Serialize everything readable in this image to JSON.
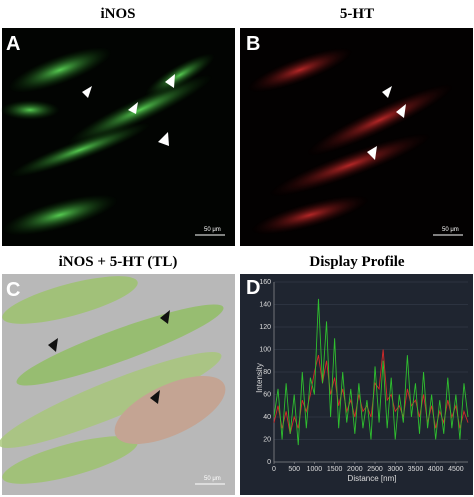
{
  "panels": [
    {
      "title": "iNOS",
      "label": "A",
      "scale_bar": "50 μm"
    },
    {
      "title": "5-HT",
      "label": "B",
      "scale_bar": "50 μm"
    },
    {
      "title": "iNOS + 5-HT (TL)",
      "label": "C",
      "scale_bar": "50 μm"
    }
  ],
  "chart_data": {
    "type": "line",
    "title": "Display Profile",
    "label": "D",
    "x_label": "Distance [nm]",
    "y_label": "Intensity",
    "x": [
      0,
      100,
      200,
      300,
      400,
      500,
      600,
      700,
      800,
      900,
      1000,
      1100,
      1200,
      1300,
      1400,
      1500,
      1600,
      1700,
      1800,
      1900,
      2000,
      2100,
      2200,
      2300,
      2400,
      2500,
      2600,
      2700,
      2800,
      2900,
      3000,
      3100,
      3200,
      3300,
      3400,
      3500,
      3600,
      3700,
      3800,
      3900,
      4000,
      4100,
      4200,
      4300,
      4400,
      4500,
      4600,
      4700,
      4800
    ],
    "series": [
      {
        "color": "#d42a2a",
        "values": [
          35,
          50,
          30,
          45,
          25,
          40,
          30,
          55,
          45,
          60,
          80,
          95,
          70,
          90,
          60,
          75,
          50,
          65,
          45,
          55,
          40,
          60,
          45,
          50,
          40,
          70,
          65,
          100,
          55,
          60,
          45,
          50,
          40,
          65,
          50,
          55,
          40,
          60,
          35,
          50,
          30,
          45,
          35,
          55,
          40,
          50,
          30,
          45,
          35
        ]
      },
      {
        "color": "#2fbf2f",
        "values": [
          40,
          65,
          20,
          70,
          25,
          60,
          15,
          80,
          30,
          75,
          60,
          145,
          70,
          125,
          40,
          110,
          30,
          80,
          35,
          65,
          25,
          70,
          30,
          55,
          20,
          85,
          35,
          90,
          30,
          75,
          20,
          60,
          35,
          95,
          40,
          70,
          25,
          80,
          30,
          60,
          20,
          55,
          25,
          75,
          30,
          60,
          20,
          70,
          40
        ]
      }
    ],
    "xlim": [
      0,
      4800
    ],
    "ylim": [
      0,
      160
    ],
    "xticks": [
      0,
      500,
      1000,
      1500,
      2000,
      2500,
      3000,
      3500,
      4000,
      4500
    ],
    "yticks": [
      0,
      20,
      40,
      60,
      80,
      100,
      120,
      140,
      160
    ],
    "grid": true
  }
}
